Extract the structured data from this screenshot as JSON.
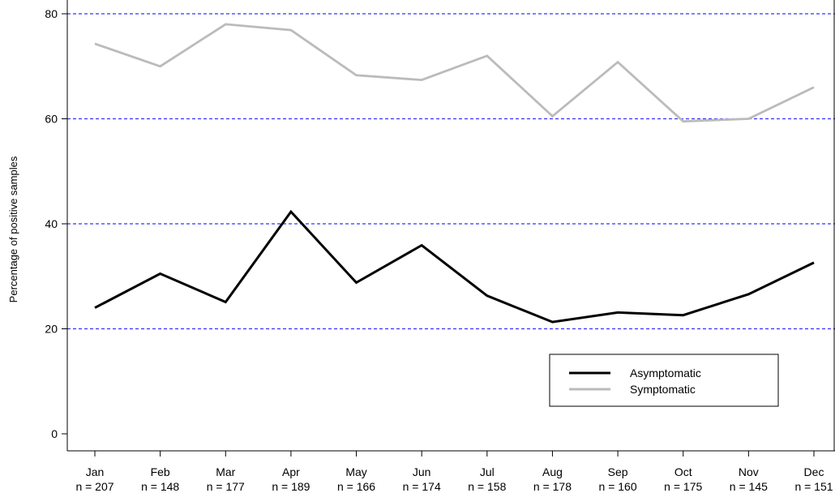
{
  "chart_data": {
    "type": "line",
    "title": "",
    "ylabel": "Percentage of positive samples",
    "xlabel": "",
    "ylim": [
      -5,
      81
    ],
    "yticks": [
      0,
      20,
      40,
      60,
      80
    ],
    "gridlines": [
      20,
      40,
      60,
      80
    ],
    "grid_color": "#3333ff",
    "categories": [
      "Jan",
      "Feb",
      "Mar",
      "Apr",
      "May",
      "Jun",
      "Jul",
      "Aug",
      "Sep",
      "Oct",
      "Nov",
      "Dec"
    ],
    "sample_sizes": [
      "n = 207",
      "n = 148",
      "n = 177",
      "n = 189",
      "n = 166",
      "n = 174",
      "n = 158",
      "n = 178",
      "n = 160",
      "n = 175",
      "n = 145",
      "n = 151"
    ],
    "series": [
      {
        "name": "Asymptomatic",
        "color": "#000000",
        "values": [
          24.0,
          30.5,
          25.1,
          42.3,
          28.8,
          35.9,
          26.3,
          21.3,
          23.1,
          22.6,
          26.6,
          32.6
        ]
      },
      {
        "name": "Symptomatic",
        "color": "#bbbbbb",
        "values": [
          74.3,
          70.0,
          78.0,
          76.9,
          68.3,
          67.4,
          72.0,
          60.5,
          70.8,
          59.5,
          60.0,
          66.0
        ]
      }
    ],
    "legend_position": "bottom-right"
  }
}
